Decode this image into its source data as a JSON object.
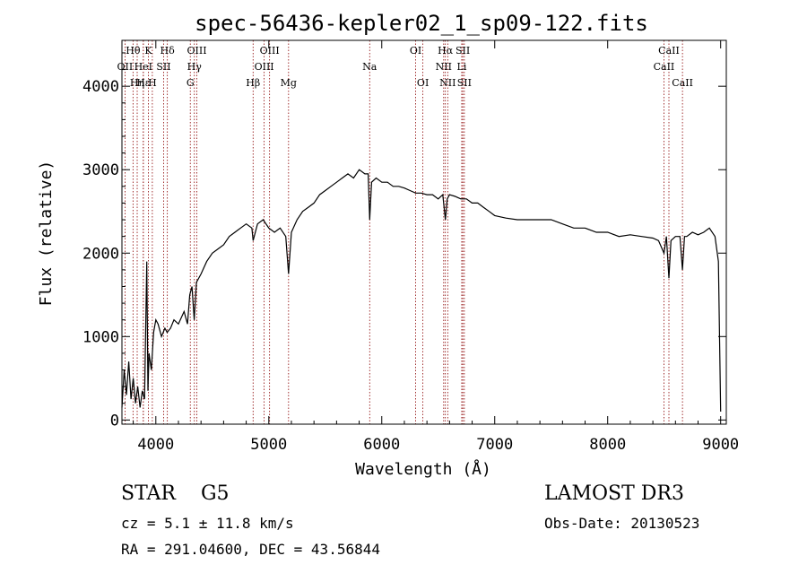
{
  "chart_data": {
    "type": "line",
    "title": "spec-56436-kepler02_1_sp09-122.fits",
    "xlabel": "Wavelength (Å)",
    "ylabel": "Flux (relative)",
    "xlim": [
      3700,
      9050
    ],
    "ylim": [
      -50,
      4550
    ],
    "xticks": [
      4000,
      5000,
      6000,
      7000,
      8000,
      9000
    ],
    "yticks": [
      0,
      1000,
      2000,
      3000,
      4000
    ],
    "grid": false,
    "series": [
      {
        "name": "spectrum",
        "x": [
          3700,
          3720,
          3740,
          3760,
          3780,
          3800,
          3820,
          3840,
          3860,
          3880,
          3900,
          3920,
          3930,
          3940,
          3960,
          3980,
          4000,
          4020,
          4050,
          4080,
          4100,
          4130,
          4160,
          4200,
          4250,
          4280,
          4300,
          4320,
          4340,
          4360,
          4400,
          4450,
          4500,
          4550,
          4600,
          4650,
          4700,
          4750,
          4800,
          4850,
          4861,
          4900,
          4950,
          5000,
          5050,
          5100,
          5150,
          5175,
          5200,
          5250,
          5300,
          5350,
          5400,
          5450,
          5500,
          5550,
          5600,
          5650,
          5700,
          5750,
          5800,
          5850,
          5880,
          5893,
          5910,
          5950,
          6000,
          6050,
          6100,
          6150,
          6200,
          6250,
          6300,
          6350,
          6400,
          6450,
          6500,
          6540,
          6563,
          6580,
          6600,
          6650,
          6700,
          6750,
          6800,
          6850,
          6900,
          6950,
          7000,
          7100,
          7200,
          7300,
          7400,
          7500,
          7600,
          7700,
          7800,
          7900,
          8000,
          8100,
          8200,
          8300,
          8400,
          8450,
          8498,
          8520,
          8542,
          8560,
          8600,
          8640,
          8662,
          8680,
          8700,
          8750,
          8800,
          8850,
          8900,
          8950,
          8980,
          9000
        ],
        "y": [
          150,
          600,
          300,
          700,
          250,
          500,
          200,
          400,
          150,
          350,
          250,
          1900,
          350,
          800,
          600,
          1050,
          1200,
          1150,
          1000,
          1100,
          1050,
          1100,
          1200,
          1150,
          1300,
          1150,
          1500,
          1600,
          1200,
          1650,
          1750,
          1900,
          2000,
          2050,
          2100,
          2200,
          2250,
          2300,
          2350,
          2300,
          2150,
          2350,
          2400,
          2300,
          2250,
          2300,
          2200,
          1750,
          2250,
          2400,
          2500,
          2550,
          2600,
          2700,
          2750,
          2800,
          2850,
          2900,
          2950,
          2900,
          3000,
          2950,
          2950,
          2400,
          2850,
          2900,
          2850,
          2850,
          2800,
          2800,
          2780,
          2750,
          2720,
          2720,
          2700,
          2700,
          2650,
          2700,
          2400,
          2650,
          2700,
          2680,
          2650,
          2650,
          2600,
          2600,
          2550,
          2500,
          2450,
          2420,
          2400,
          2400,
          2400,
          2400,
          2350,
          2300,
          2300,
          2250,
          2250,
          2200,
          2220,
          2200,
          2180,
          2150,
          2000,
          2200,
          1700,
          2150,
          2200,
          2200,
          1800,
          2200,
          2200,
          2250,
          2220,
          2250,
          2300,
          2200,
          1900,
          100
        ]
      }
    ],
    "lines": [
      {
        "label": "Hθ",
        "x": 3798,
        "row": 0
      },
      {
        "label": "OII",
        "x": 3727,
        "row": 1
      },
      {
        "label": "Hη",
        "x": 3835,
        "row": 2
      },
      {
        "label": "Hε",
        "x": 3889,
        "row": 2
      },
      {
        "label": "K",
        "x": 3934,
        "row": 0
      },
      {
        "label": "HeI",
        "x": 3889,
        "row": 1
      },
      {
        "label": "H",
        "x": 3969,
        "row": 2
      },
      {
        "label": "Hδ",
        "x": 4102,
        "row": 0
      },
      {
        "label": "SII",
        "x": 4069,
        "row": 1
      },
      {
        "label": "OIII",
        "x": 4363,
        "row": 0
      },
      {
        "label": "Hγ",
        "x": 4341,
        "row": 1
      },
      {
        "label": "G",
        "x": 4305,
        "row": 2
      },
      {
        "label": "Hβ",
        "x": 4861,
        "row": 2
      },
      {
        "label": "OIII",
        "x": 5007,
        "row": 0
      },
      {
        "label": "OIII",
        "x": 4959,
        "row": 1
      },
      {
        "label": "Mg",
        "x": 5175,
        "row": 2
      },
      {
        "label": "Na",
        "x": 5893,
        "row": 1
      },
      {
        "label": "OI",
        "x": 6300,
        "row": 0
      },
      {
        "label": "OI",
        "x": 6364,
        "row": 2
      },
      {
        "label": "Hα",
        "x": 6563,
        "row": 0
      },
      {
        "label": "NII",
        "x": 6548,
        "row": 1
      },
      {
        "label": "NII",
        "x": 6584,
        "row": 2
      },
      {
        "label": "SII",
        "x": 6717,
        "row": 0
      },
      {
        "label": "Li",
        "x": 6708,
        "row": 1
      },
      {
        "label": "SII",
        "x": 6731,
        "row": 2
      },
      {
        "label": "CaII",
        "x": 8542,
        "row": 0
      },
      {
        "label": "CaII",
        "x": 8498,
        "row": 1
      },
      {
        "label": "CaII",
        "x": 8662,
        "row": 2
      }
    ],
    "line_color": "#8b0000"
  },
  "info": {
    "object_class": "STAR",
    "subclass": "G5",
    "survey": "LAMOST DR3",
    "redshift": "cz = 5.1 ± 11.8 km/s",
    "obs_date": "Obs-Date: 20130523",
    "coords": "RA = 291.04600, DEC =  43.56844"
  }
}
